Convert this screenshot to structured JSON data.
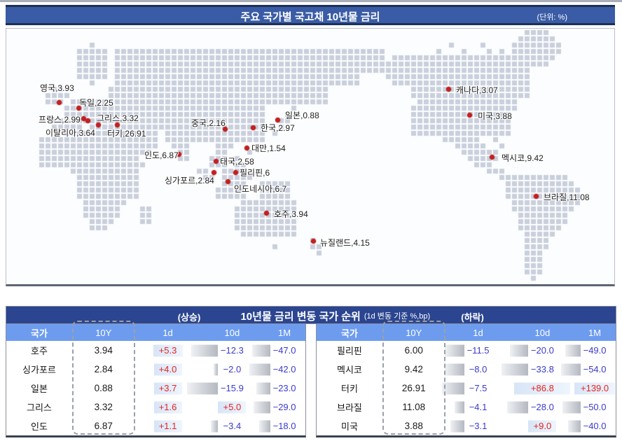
{
  "colors": {
    "titlebar_blue": "#3a5ca6",
    "rank_navy": "#2b4590",
    "header_blue": "#6d9cef",
    "up_red": "#e8231e",
    "down_blue": "#3a3acd",
    "land_grey": "#c9cfdb",
    "dot_red": "#c42020"
  },
  "header": {
    "title": "주요 국가별 국고채 10년물 금리",
    "unit": "(단위:  %)"
  },
  "map": {
    "points": [
      {
        "label": "영국,3.93",
        "country": "영국",
        "value": 3.93,
        "dot": [
          85,
          145
        ],
        "text": [
          58,
          116
        ]
      },
      {
        "label": "독일,2.25",
        "country": "독일",
        "value": 2.25,
        "dot": [
          113,
          153
        ],
        "text": [
          114,
          137
        ]
      },
      {
        "label": "프랑스,2.99",
        "country": "프랑스",
        "value": 2.99,
        "dot": [
          120,
          168
        ],
        "text": [
          56,
          161
        ]
      },
      {
        "label": "그리스,3.32",
        "country": "그리스",
        "value": 3.32,
        "dot": [
          141,
          177
        ],
        "text": [
          139,
          159
        ]
      },
      {
        "label": "이탈리아,3.64",
        "country": "이탈리아",
        "value": 3.64,
        "dot": [
          126,
          171
        ],
        "text": [
          66,
          180
        ]
      },
      {
        "label": "터키,26.91",
        "country": "터키",
        "value": 26.91,
        "dot": [
          168,
          177
        ],
        "text": [
          154,
          181
        ]
      },
      {
        "label": "인도,6.87",
        "country": "인도",
        "value": 6.87,
        "dot": [
          256,
          219
        ],
        "text": [
          207,
          212
        ]
      },
      {
        "label": "중국,2.16",
        "country": "중국",
        "value": 2.16,
        "dot": [
          322,
          183
        ],
        "text": [
          274,
          166
        ]
      },
      {
        "label": "한국,2.97",
        "country": "한국",
        "value": 2.97,
        "dot": [
          362,
          181
        ],
        "text": [
          373,
          173
        ]
      },
      {
        "label": "일본,0.88",
        "country": "일본",
        "value": 0.88,
        "dot": [
          397,
          170
        ],
        "text": [
          408,
          155
        ]
      },
      {
        "label": "대만,1.54",
        "country": "대만",
        "value": 1.54,
        "dot": [
          353,
          210
        ],
        "text": [
          360,
          202
        ]
      },
      {
        "label": "태국,2.58",
        "country": "태국",
        "value": 2.58,
        "dot": [
          309,
          229
        ],
        "text": [
          315,
          221
        ]
      },
      {
        "label": "필리핀,6",
        "country": "필리핀",
        "value": 6,
        "dot": [
          337,
          245
        ],
        "text": [
          343,
          237
        ]
      },
      {
        "label": "싱가포르,2.84",
        "country": "싱가포르",
        "value": 2.84,
        "dot": [
          306,
          245
        ],
        "text": [
          236,
          248
        ]
      },
      {
        "label": "인도네시아,6.7",
        "country": "인도네시아",
        "value": 6.7,
        "dot": [
          326,
          258
        ],
        "text": [
          335,
          260
        ]
      },
      {
        "label": "호주,3.94",
        "country": "호주",
        "value": 3.94,
        "dot": [
          381,
          303
        ],
        "text": [
          392,
          296
        ]
      },
      {
        "label": "뉴질랜드,4.15",
        "country": "뉴질랜드",
        "value": 4.15,
        "dot": [
          448,
          343
        ],
        "text": [
          458,
          337
        ]
      },
      {
        "label": "캐나다,3.07",
        "country": "캐나다",
        "value": 3.07,
        "dot": [
          641,
          126
        ],
        "text": [
          652,
          119
        ]
      },
      {
        "label": "미국,3.88",
        "country": "미국",
        "value": 3.88,
        "dot": [
          671,
          163
        ],
        "text": [
          683,
          156
        ]
      },
      {
        "label": "멕시코,9.42",
        "country": "멕시코",
        "value": 9.42,
        "dot": [
          703,
          223
        ],
        "text": [
          717,
          216
        ]
      },
      {
        "label": "브라질,11.08",
        "country": "브라질",
        "value": 11.08,
        "dot": [
          766,
          279
        ],
        "text": [
          777,
          272
        ]
      }
    ]
  },
  "rank": {
    "up_label": "(상승)",
    "title": "10년물 금리 변동 국가 순위",
    "subtitle": "(1d 변동 기준 %,bp)",
    "down_label": "(하락)",
    "columns": [
      "국가",
      "10Y",
      "1d",
      "10d",
      "1M"
    ],
    "tables": [
      {
        "name": "up",
        "rows": [
          {
            "country": "호주",
            "y10": "3.94",
            "cells": [
              {
                "v": "+5.3",
                "dir": "up",
                "bar": 42
              },
              {
                "v": "−12.3",
                "dir": "down",
                "bar": 38
              },
              {
                "v": "−47.0",
                "dir": "down",
                "bar": 26
              }
            ]
          },
          {
            "country": "싱가포르",
            "y10": "2.84",
            "cells": [
              {
                "v": "+4.0",
                "dir": "up",
                "bar": 38
              },
              {
                "v": "−2.0",
                "dir": "down",
                "bar": 6
              },
              {
                "v": "−42.0",
                "dir": "down",
                "bar": 30
              }
            ]
          },
          {
            "country": "일본",
            "y10": "0.88",
            "cells": [
              {
                "v": "+3.7",
                "dir": "up",
                "bar": 40
              },
              {
                "v": "−15.9",
                "dir": "down",
                "bar": 44
              },
              {
                "v": "−23.0",
                "dir": "down",
                "bar": 20
              }
            ]
          },
          {
            "country": "그리스",
            "y10": "3.32",
            "cells": [
              {
                "v": "+1.6",
                "dir": "up",
                "bar": 32
              },
              {
                "v": "+5.0",
                "dir": "up",
                "bar": 38
              },
              {
                "v": "−29.0",
                "dir": "down",
                "bar": 24
              }
            ]
          },
          {
            "country": "인도",
            "y10": "6.87",
            "cells": [
              {
                "v": "+1.1",
                "dir": "up",
                "bar": 30
              },
              {
                "v": "−3.4",
                "dir": "down",
                "bar": 10
              },
              {
                "v": "−18.0",
                "dir": "down",
                "bar": 16
              }
            ]
          }
        ]
      },
      {
        "name": "down",
        "rows": [
          {
            "country": "필리핀",
            "y10": "6.00",
            "cells": [
              {
                "v": "−11.5",
                "dir": "down",
                "bar": 28
              },
              {
                "v": "−20.0",
                "dir": "down",
                "bar": 26
              },
              {
                "v": "−49.0",
                "dir": "down",
                "bar": 22
              }
            ]
          },
          {
            "country": "멕시코",
            "y10": "9.42",
            "cells": [
              {
                "v": "−8.0",
                "dir": "down",
                "bar": 28
              },
              {
                "v": "−33.8",
                "dir": "down",
                "bar": 38
              },
              {
                "v": "−54.0",
                "dir": "down",
                "bar": 28
              }
            ]
          },
          {
            "country": "터키",
            "y10": "26.91",
            "cells": [
              {
                "v": "−7.5",
                "dir": "down",
                "bar": 32
              },
              {
                "v": "+86.8",
                "dir": "up",
                "bar": 80
              },
              {
                "v": "+139.0",
                "dir": "up",
                "bar": 58
              }
            ]
          },
          {
            "country": "브라질",
            "y10": "11.08",
            "cells": [
              {
                "v": "−4.1",
                "dir": "down",
                "bar": 14
              },
              {
                "v": "−28.0",
                "dir": "down",
                "bar": 30
              },
              {
                "v": "−50.0",
                "dir": "down",
                "bar": 26
              }
            ]
          },
          {
            "country": "미국",
            "y10": "3.88",
            "cells": [
              {
                "v": "−3.1",
                "dir": "down",
                "bar": 20
              },
              {
                "v": "+9.0",
                "dir": "up",
                "bar": 36
              },
              {
                "v": "−40.0",
                "dir": "down",
                "bar": 18
              }
            ]
          }
        ]
      }
    ]
  },
  "chart_data": [
    {
      "type": "scatter",
      "title": "주요 국가별 국고채 10년물 금리 (단위: %)",
      "series": [
        {
          "name": "국고채 10년물 금리",
          "points": [
            {
              "country": "영국",
              "value": 3.93
            },
            {
              "country": "독일",
              "value": 2.25
            },
            {
              "country": "프랑스",
              "value": 2.99
            },
            {
              "country": "그리스",
              "value": 3.32
            },
            {
              "country": "이탈리아",
              "value": 3.64
            },
            {
              "country": "터키",
              "value": 26.91
            },
            {
              "country": "인도",
              "value": 6.87
            },
            {
              "country": "중국",
              "value": 2.16
            },
            {
              "country": "한국",
              "value": 2.97
            },
            {
              "country": "일본",
              "value": 0.88
            },
            {
              "country": "대만",
              "value": 1.54
            },
            {
              "country": "태국",
              "value": 2.58
            },
            {
              "country": "필리핀",
              "value": 6
            },
            {
              "country": "싱가포르",
              "value": 2.84
            },
            {
              "country": "인도네시아",
              "value": 6.7
            },
            {
              "country": "호주",
              "value": 3.94
            },
            {
              "country": "뉴질랜드",
              "value": 4.15
            },
            {
              "country": "캐나다",
              "value": 3.07
            },
            {
              "country": "미국",
              "value": 3.88
            },
            {
              "country": "멕시코",
              "value": 9.42
            },
            {
              "country": "브라질",
              "value": 11.08
            }
          ]
        }
      ]
    },
    {
      "type": "table",
      "title": "10년물 금리 변동 국가 순위 (상승) (1d 변동 기준 %,bp)",
      "columns": [
        "국가",
        "10Y",
        "1d",
        "10d",
        "1M"
      ],
      "rows": [
        [
          "호주",
          3.94,
          5.3,
          -12.3,
          -47.0
        ],
        [
          "싱가포르",
          2.84,
          4.0,
          -2.0,
          -42.0
        ],
        [
          "일본",
          0.88,
          3.7,
          -15.9,
          -23.0
        ],
        [
          "그리스",
          3.32,
          1.6,
          5.0,
          -29.0
        ],
        [
          "인도",
          6.87,
          1.1,
          -3.4,
          -18.0
        ]
      ]
    },
    {
      "type": "table",
      "title": "10년물 금리 변동 국가 순위 (하락) (1d 변동 기준 %,bp)",
      "columns": [
        "국가",
        "10Y",
        "1d",
        "10d",
        "1M"
      ],
      "rows": [
        [
          "필리핀",
          6.0,
          -11.5,
          -20.0,
          -49.0
        ],
        [
          "멕시코",
          9.42,
          -8.0,
          -33.8,
          -54.0
        ],
        [
          "터키",
          26.91,
          -7.5,
          86.8,
          139.0
        ],
        [
          "브라질",
          11.08,
          -4.1,
          -28.0,
          -50.0
        ],
        [
          "미국",
          3.88,
          -3.1,
          9.0,
          -40.0
        ]
      ]
    }
  ]
}
